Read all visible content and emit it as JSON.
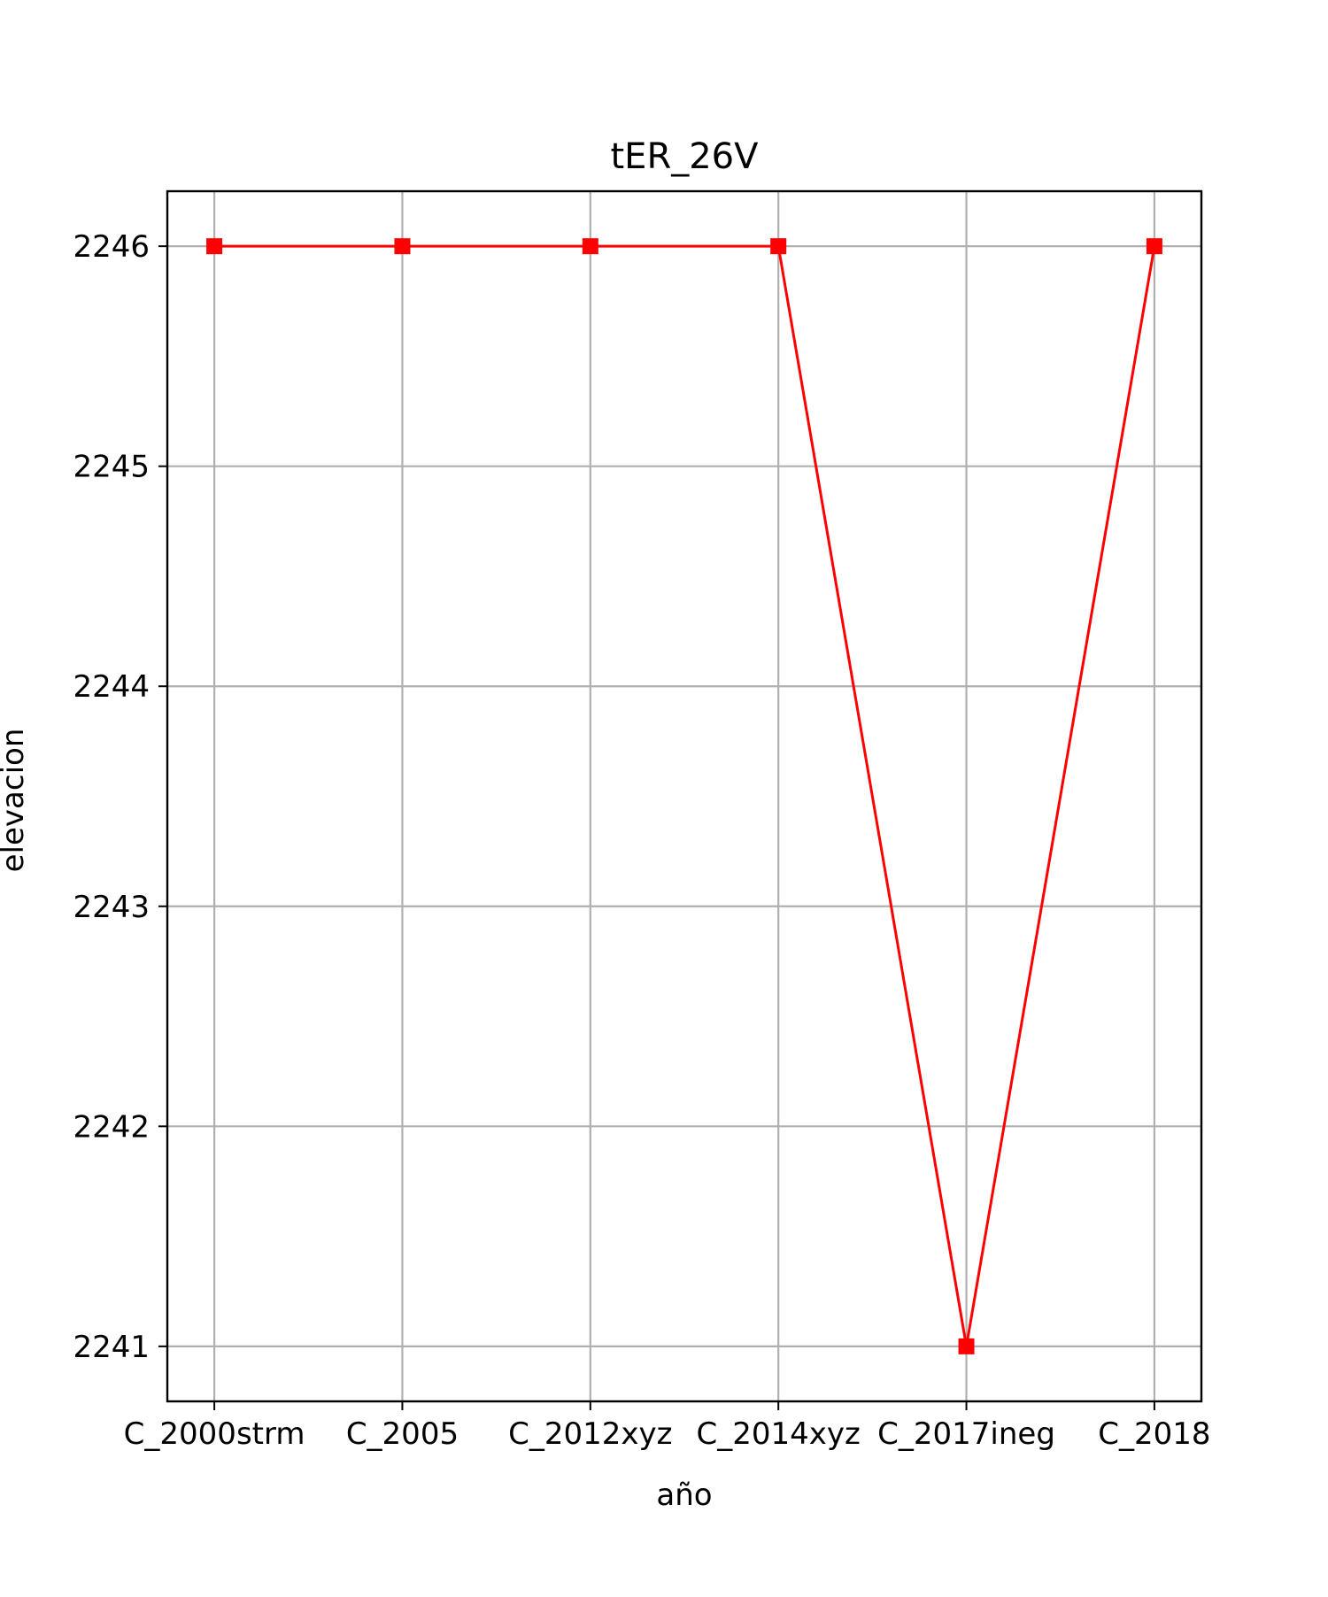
{
  "chart_data": {
    "type": "line",
    "title": "tER_26V",
    "xlabel": "año",
    "ylabel": "elevacion",
    "categories": [
      "C_2000strm",
      "C_2005",
      "C_2012xyz",
      "C_2014xyz",
      "C_2017ineg",
      "C_2018"
    ],
    "series": [
      {
        "values": [
          2246,
          2246,
          2246,
          2246,
          2241,
          2246
        ],
        "color": "#ff0000",
        "marker": "square"
      }
    ],
    "yticks": [
      2241,
      2242,
      2243,
      2244,
      2245,
      2246
    ],
    "ytick_labels": [
      "2241",
      "2242",
      "2243",
      "2244",
      "2245",
      "2246"
    ],
    "ylim": [
      2240.75,
      2246.25
    ],
    "grid": true,
    "legend": "none"
  }
}
